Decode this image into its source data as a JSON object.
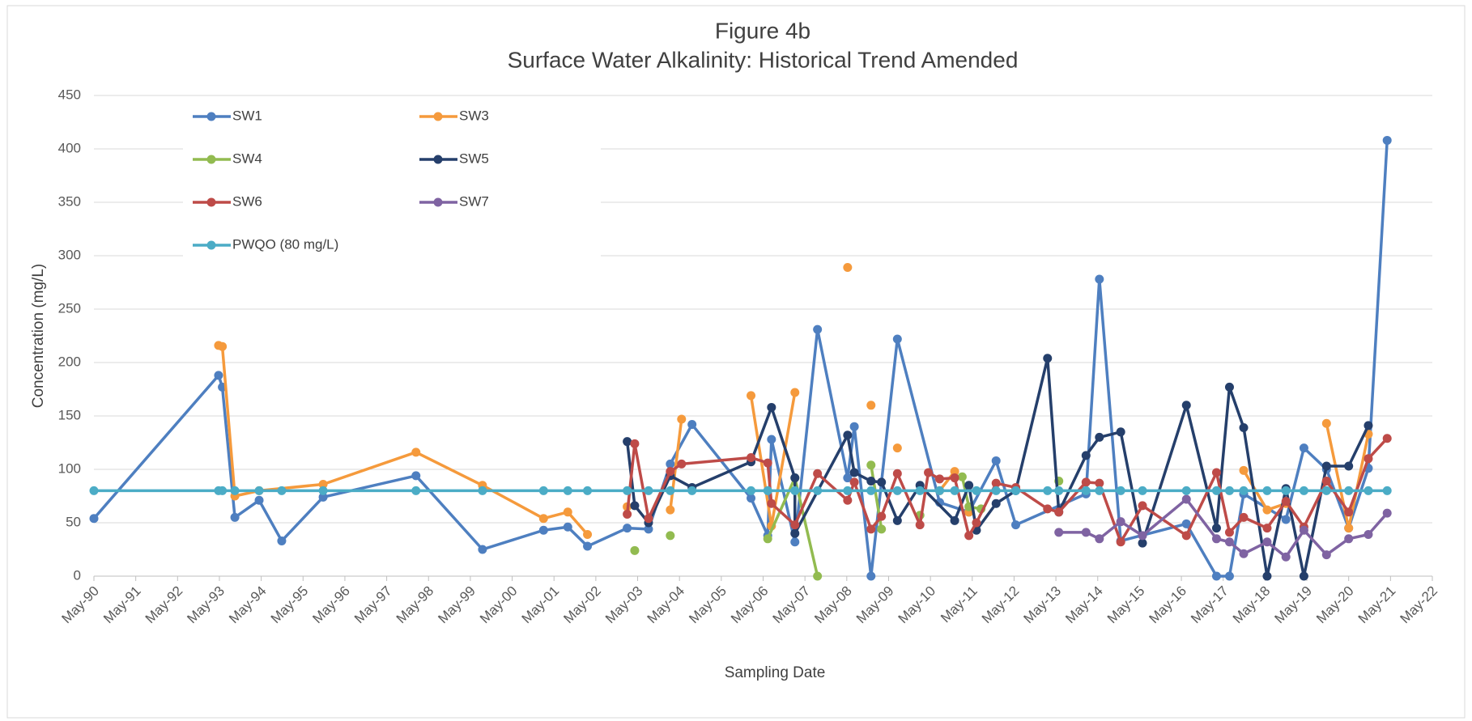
{
  "chart_data": {
    "type": "line",
    "title": "Figure 4b",
    "subtitle": "Surface Water Alkalinity: Historical Trend Amended",
    "x_label": "Sampling Date",
    "y_label": "Concentration (mg/L)",
    "xlim": [
      1990.37,
      2022.37
    ],
    "xticks": [
      {
        "value": 1990.37,
        "label": "May-90"
      },
      {
        "value": 1991.37,
        "label": "May-91"
      },
      {
        "value": 1992.37,
        "label": "May-92"
      },
      {
        "value": 1993.37,
        "label": "May-93"
      },
      {
        "value": 1994.37,
        "label": "May-94"
      },
      {
        "value": 1995.37,
        "label": "May-95"
      },
      {
        "value": 1996.37,
        "label": "May-96"
      },
      {
        "value": 1997.37,
        "label": "May-97"
      },
      {
        "value": 1998.37,
        "label": "May-98"
      },
      {
        "value": 1999.37,
        "label": "May-99"
      },
      {
        "value": 2000.37,
        "label": "May-00"
      },
      {
        "value": 2001.37,
        "label": "May-01"
      },
      {
        "value": 2002.37,
        "label": "May-02"
      },
      {
        "value": 2003.37,
        "label": "May-03"
      },
      {
        "value": 2004.37,
        "label": "May-04"
      },
      {
        "value": 2005.37,
        "label": "May-05"
      },
      {
        "value": 2006.37,
        "label": "May-06"
      },
      {
        "value": 2007.37,
        "label": "May-07"
      },
      {
        "value": 2008.37,
        "label": "May-08"
      },
      {
        "value": 2009.37,
        "label": "May-09"
      },
      {
        "value": 2010.37,
        "label": "May-10"
      },
      {
        "value": 2011.37,
        "label": "May-11"
      },
      {
        "value": 2012.37,
        "label": "May-12"
      },
      {
        "value": 2013.37,
        "label": "May-13"
      },
      {
        "value": 2014.37,
        "label": "May-14"
      },
      {
        "value": 2015.37,
        "label": "May-15"
      },
      {
        "value": 2016.37,
        "label": "May-16"
      },
      {
        "value": 2017.37,
        "label": "May-17"
      },
      {
        "value": 2018.37,
        "label": "May-18"
      },
      {
        "value": 2019.37,
        "label": "May-19"
      },
      {
        "value": 2020.37,
        "label": "May-20"
      },
      {
        "value": 2021.37,
        "label": "May-21"
      },
      {
        "value": 2022.37,
        "label": "May-22"
      }
    ],
    "ylim": [
      0,
      450
    ],
    "yticks": [
      0,
      50,
      100,
      150,
      200,
      250,
      300,
      350,
      400,
      450
    ],
    "grid": true,
    "legend": "top-left",
    "series": [
      {
        "name": "SW1",
        "color": "#4e7fc0",
        "x": [
          1990.37,
          1993.35,
          1993.44,
          1993.74,
          1994.32,
          1994.86,
          1995.85,
          1998.07,
          1999.66,
          2001.12,
          2001.7,
          2002.17,
          2003.12,
          2003.63,
          2004.15,
          2004.67,
          2006.08,
          2006.48,
          2006.57,
          2007.13,
          2007.67,
          2008.39,
          2008.55,
          2008.95,
          2009.58,
          2010.59,
          2011.29,
          2011.94,
          2012.41,
          2014.09,
          2014.41,
          2014.92,
          2016.49,
          2017.21,
          2017.52,
          2017.86,
          2018.87,
          2019.3,
          2019.84,
          2020.37,
          2020.84,
          2021.29
        ],
        "values": [
          54,
          188,
          177,
          55,
          71,
          33,
          74,
          94,
          25,
          43,
          46,
          28,
          45,
          44,
          105,
          142,
          73,
          38,
          128,
          32,
          231,
          92,
          140,
          0,
          222,
          69,
          60,
          108,
          48,
          77,
          278,
          33,
          49,
          0,
          0,
          77,
          53,
          120,
          100,
          45,
          101,
          408
        ]
      },
      {
        "name": "SW3",
        "color": "#f59a3c",
        "x": [
          1993.35,
          1993.44,
          1993.74,
          1994.32,
          1995.85,
          1998.07,
          1999.66,
          2001.12,
          2001.7,
          2002.17,
          null,
          2003.12,
          null,
          2004.15,
          2004.42,
          null,
          2006.08,
          2006.57,
          2007.13,
          null,
          2008.39,
          null,
          2008.95,
          null,
          2009.58,
          null,
          2010.59,
          2010.95,
          null,
          2011.29,
          null,
          2017.86,
          2018.42,
          2018.87,
          null,
          2019.84,
          2020.37,
          2020.84
        ],
        "values": [
          216,
          215,
          75,
          80,
          86,
          116,
          85,
          54,
          60,
          39,
          null,
          65,
          null,
          62,
          147,
          null,
          169,
          47,
          172,
          null,
          289,
          null,
          160,
          null,
          120,
          null,
          80,
          98,
          null,
          60,
          null,
          99,
          62,
          68,
          null,
          143,
          45,
          133
        ]
      },
      {
        "name": "SW4",
        "color": "#92bb50",
        "x": [
          2003.3,
          null,
          2004.15,
          null,
          2006.48,
          2007.13,
          2007.67,
          null,
          2008.95,
          2009.2,
          null,
          2010.12,
          null,
          2011.13,
          2011.29,
          2011.58,
          null,
          2013.44
        ],
        "values": [
          24,
          null,
          38,
          null,
          35,
          92,
          0,
          null,
          104,
          44,
          null,
          57,
          null,
          93,
          65,
          63,
          null,
          89
        ]
      },
      {
        "name": "SW5",
        "color": "#253f6b",
        "x": [
          2003.12,
          2003.3,
          2003.63,
          2004.15,
          2004.67,
          2006.08,
          2006.57,
          2007.13,
          2007.13,
          2008.39,
          2008.55,
          2008.95,
          2009.2,
          2009.58,
          2010.12,
          2010.95,
          2011.29,
          2011.47,
          2011.94,
          2012.41,
          2013.17,
          2013.44,
          2014.09,
          2014.41,
          2014.92,
          2015.44,
          2016.49,
          2017.21,
          2017.52,
          2017.86,
          2018.42,
          2018.87,
          2019.3,
          2019.84,
          2020.37,
          2020.84
        ],
        "values": [
          126,
          66,
          50,
          94,
          83,
          107,
          158,
          92,
          40,
          132,
          97,
          89,
          88,
          52,
          85,
          52,
          85,
          43,
          68,
          80,
          204,
          60,
          113,
          130,
          135,
          31,
          160,
          45,
          177,
          139,
          0,
          82,
          0,
          103,
          103,
          141
        ]
      },
      {
        "name": "SW6",
        "color": "#be4b48",
        "x": [
          2003.12,
          2003.3,
          2003.63,
          2004.15,
          2004.42,
          2006.08,
          2006.48,
          2006.57,
          2007.13,
          2007.67,
          2008.39,
          2008.55,
          2008.95,
          2009.2,
          2009.58,
          2010.12,
          2010.32,
          2010.59,
          2010.95,
          2011.29,
          2011.47,
          2011.94,
          2012.41,
          2013.17,
          2013.44,
          2014.09,
          2014.41,
          2014.92,
          2015.44,
          2016.49,
          2017.21,
          2017.52,
          2017.86,
          2018.42,
          2018.87,
          2019.3,
          2019.84,
          2020.37,
          2020.84,
          2021.29
        ],
        "values": [
          58,
          124,
          54,
          98,
          105,
          111,
          106,
          68,
          48,
          96,
          71,
          88,
          44,
          56,
          96,
          48,
          97,
          91,
          92,
          38,
          50,
          87,
          83,
          63,
          60,
          88,
          87,
          32,
          66,
          38,
          97,
          41,
          55,
          45,
          70,
          46,
          89,
          60,
          110,
          129
        ]
      },
      {
        "name": "SW7",
        "color": "#7f63a2",
        "x": [
          2013.44,
          2014.09,
          2014.41,
          2014.92,
          2015.44,
          2016.49,
          2017.21,
          2017.52,
          2017.86,
          2018.42,
          2018.87,
          2019.3,
          2019.84,
          2020.37,
          2020.84,
          2021.29
        ],
        "values": [
          41,
          41,
          35,
          51,
          38,
          72,
          35,
          32,
          21,
          32,
          18,
          43,
          20,
          35,
          39,
          59
        ]
      },
      {
        "name": "PWQO (80 mg/L)",
        "color": "#4bacc6",
        "x": [
          1990.37,
          1993.35,
          1993.44,
          1993.74,
          1994.32,
          1994.86,
          1995.85,
          1998.07,
          1999.66,
          2001.12,
          2001.7,
          2002.17,
          2003.12,
          2003.63,
          2004.15,
          2004.67,
          2006.08,
          2006.48,
          2007.13,
          2007.67,
          2008.39,
          2008.95,
          2009.58,
          2010.12,
          2010.59,
          2010.95,
          2011.47,
          2011.94,
          2012.41,
          2013.17,
          2013.44,
          2014.09,
          2014.41,
          2014.92,
          2015.44,
          2016.49,
          2017.21,
          2017.52,
          2017.86,
          2018.42,
          2018.87,
          2019.3,
          2019.84,
          2020.37,
          2020.84,
          2021.29
        ],
        "values": [
          80,
          80,
          80,
          80,
          80,
          80,
          80,
          80,
          80,
          80,
          80,
          80,
          80,
          80,
          80,
          80,
          80,
          80,
          80,
          80,
          80,
          80,
          80,
          80,
          80,
          80,
          80,
          80,
          80,
          80,
          80,
          80,
          80,
          80,
          80,
          80,
          80,
          80,
          80,
          80,
          80,
          80,
          80,
          80,
          80,
          80
        ]
      }
    ]
  }
}
